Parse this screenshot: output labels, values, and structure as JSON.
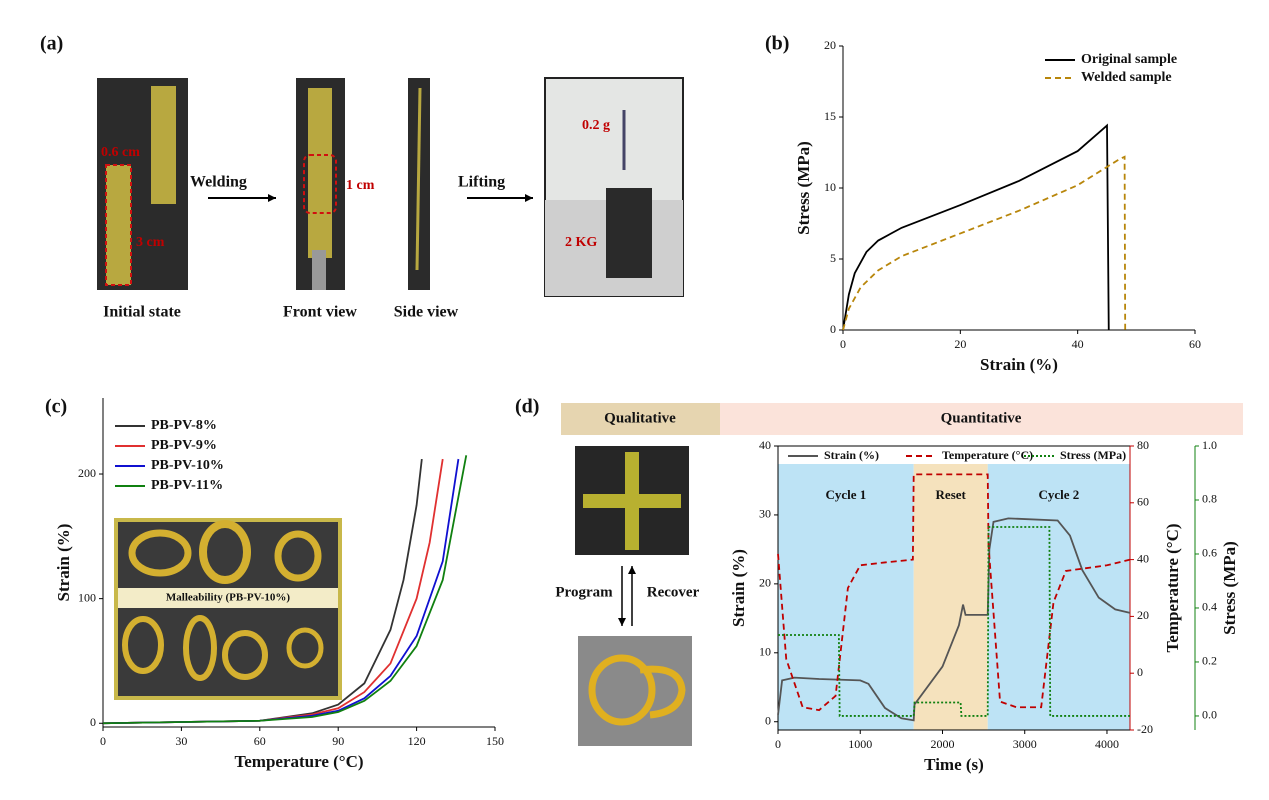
{
  "panel_a": {
    "label": "(a)",
    "arrows": [
      "Welding",
      "Lifting"
    ],
    "dimensions": [
      "0.6 cm",
      "3 cm",
      "1 cm"
    ],
    "weights": [
      "0.2 g",
      "2 KG"
    ],
    "captions": [
      "Initial state",
      "Front view",
      "Side view"
    ]
  },
  "chart_data": [
    {
      "type": "line",
      "label": "(b)",
      "xlabel": "Strain (%)",
      "ylabel": "Stress (MPa)",
      "xlim": [
        0,
        60
      ],
      "xticks": [
        0,
        20,
        40,
        60
      ],
      "ylim": [
        0,
        20
      ],
      "yticks": [
        0,
        5,
        10,
        15,
        20
      ],
      "legend": "upper right",
      "series": [
        {
          "name": "Original sample",
          "color": "#000000",
          "line_style": "solid",
          "x": [
            0,
            1,
            2,
            4,
            6,
            10,
            20,
            30,
            40,
            45,
            45.3
          ],
          "values": [
            0,
            2.5,
            4,
            5.5,
            6.3,
            7.2,
            8.8,
            10.5,
            12.6,
            14.4,
            0
          ]
        },
        {
          "name": "Welded sample",
          "color": "#b8860b",
          "line_style": "dashed",
          "x": [
            0,
            1,
            3,
            6,
            10,
            20,
            30,
            40,
            47,
            48,
            48.1
          ],
          "values": [
            0,
            1.5,
            3,
            4.2,
            5.2,
            6.8,
            8.4,
            10.2,
            12,
            12.2,
            0
          ]
        }
      ]
    },
    {
      "type": "line",
      "label": "(c)",
      "xlabel": "Temperature (°C)",
      "ylabel": "Strain (%)",
      "xlim": [
        0,
        150
      ],
      "xticks": [
        0,
        30,
        60,
        90,
        120,
        150
      ],
      "ylim": [
        -3,
        261
      ],
      "yticks": [
        0,
        100,
        200
      ],
      "legend": "upper left",
      "inset_label": "Malleability (PB-PV-10%)",
      "series": [
        {
          "name": "PB-PV-8%",
          "color": "#333333",
          "line_style": "solid",
          "x": [
            0,
            60,
            80,
            90,
            100,
            110,
            115,
            120,
            122
          ],
          "values": [
            0,
            2,
            8,
            15,
            32,
            75,
            115,
            175,
            212
          ]
        },
        {
          "name": "PB-PV-9%",
          "color": "#e03030",
          "line_style": "solid",
          "x": [
            0,
            60,
            80,
            90,
            100,
            110,
            120,
            125,
            130
          ],
          "values": [
            0,
            2,
            7,
            12,
            25,
            48,
            100,
            145,
            212
          ]
        },
        {
          "name": "PB-PV-10%",
          "color": "#1010d0",
          "line_style": "solid",
          "x": [
            0,
            60,
            80,
            90,
            100,
            110,
            120,
            130,
            136
          ],
          "values": [
            0,
            2,
            6,
            10,
            20,
            38,
            70,
            130,
            212
          ]
        },
        {
          "name": "PB-PV-11%",
          "color": "#108010",
          "line_style": "solid",
          "x": [
            0,
            60,
            80,
            90,
            100,
            110,
            120,
            130,
            139
          ],
          "values": [
            0,
            2,
            5,
            9,
            18,
            34,
            62,
            115,
            215
          ]
        }
      ]
    },
    {
      "type": "line",
      "label": "(d)",
      "headers": [
        "Qualitative",
        "Quantitative"
      ],
      "photo_labels": [
        "Program",
        "Recover"
      ],
      "xlabel": "Time (s)",
      "ylabel": "Strain (%)",
      "y2label": "Temperature (°C)",
      "y3label": "Stress (MPa)",
      "legend": "top",
      "frame": true,
      "xlim": [
        0,
        4280
      ],
      "xticks": [
        0,
        1000,
        2000,
        3000,
        4000
      ],
      "ylim": [
        -1.2,
        40
      ],
      "yticks": [
        0,
        10,
        20,
        30,
        40
      ],
      "y2lim": [
        -20,
        80
      ],
      "y2ticks": [
        -20,
        0,
        20,
        40,
        60,
        80
      ],
      "y2color": "#c00000",
      "y3lim": [
        -0.052,
        1.0
      ],
      "y3ticks": [
        {
          "value": 0,
          "label": "0.0"
        },
        {
          "value": 0.2,
          "label": "0.2"
        },
        {
          "value": 0.4,
          "label": "0.4"
        },
        {
          "value": 0.6,
          "label": "0.6"
        },
        {
          "value": 0.8,
          "label": "0.8"
        },
        {
          "value": 1.0,
          "label": "1.0"
        }
      ],
      "y3color": "#108010",
      "regions": [
        {
          "label": "Cycle 1",
          "x": [
            0,
            1650
          ],
          "color": "#bde3f5"
        },
        {
          "label": "Reset",
          "x": [
            1650,
            2550
          ],
          "color": "#f5e2bd"
        },
        {
          "label": "Cycle 2",
          "x": [
            2550,
            4280
          ],
          "color": "#bde3f5"
        }
      ],
      "series": [
        {
          "name": "Strain (%)",
          "color": "#555555",
          "line_style": "solid",
          "x": [
            0,
            50,
            200,
            500,
            1000,
            1100,
            1300,
            1500,
            1650,
            1660,
            2000,
            2200,
            2250,
            2280,
            2550,
            2570,
            2620,
            2800,
            3400,
            3550,
            3700,
            3900,
            4100,
            4280
          ],
          "values": [
            1,
            6,
            6.4,
            6.2,
            6,
            5.5,
            2,
            0.5,
            0.2,
            2.5,
            8,
            14,
            17,
            15.5,
            15.5,
            25,
            29,
            29.5,
            29.2,
            27,
            22,
            18,
            16.3,
            15.8
          ]
        },
        {
          "name": "Temperature (°C)",
          "color": "#c00000",
          "line_style": "dashed",
          "axis": "y2",
          "x": [
            0,
            100,
            300,
            500,
            700,
            850,
            1000,
            1300,
            1640,
            1650,
            2550,
            2560,
            2700,
            2900,
            3200,
            3350,
            3500,
            4000,
            4280
          ],
          "values": [
            42,
            5,
            -12,
            -13,
            -8,
            30,
            38,
            39,
            40,
            70,
            70,
            45,
            -10,
            -12,
            -12,
            25,
            36,
            38,
            40
          ]
        },
        {
          "name": "Stress (MPa)",
          "color": "#108010",
          "line_style": "dotted",
          "axis": "y3",
          "x": [
            0,
            740,
            750,
            1650,
            1660,
            2220,
            2230,
            2550,
            2560,
            3300,
            3310,
            4280
          ],
          "values": [
            0.3,
            0.3,
            0,
            0,
            0.05,
            0.05,
            0,
            0,
            0.7,
            0.7,
            0,
            0
          ]
        }
      ]
    }
  ]
}
